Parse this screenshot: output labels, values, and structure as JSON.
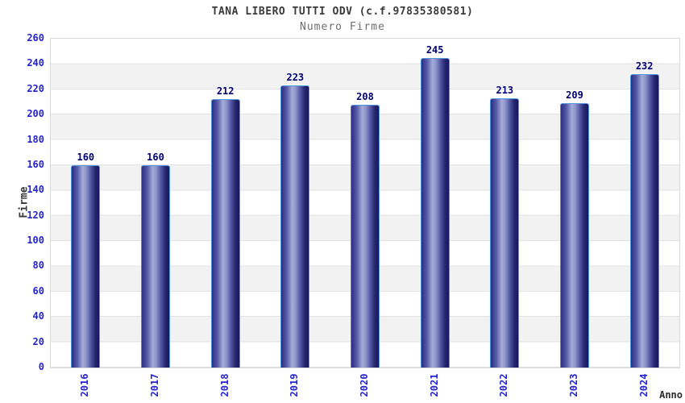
{
  "header": {
    "title": "TANA LIBERO TUTTI ODV (c.f.97835380581)",
    "subtitle": "Numero Firme"
  },
  "chart_data": {
    "type": "bar",
    "title": "TANA LIBERO TUTTI ODV (c.f.97835380581)",
    "subtitle": "Numero Firme",
    "xlabel": "Anno",
    "ylabel": "Firme",
    "categories": [
      "2016",
      "2017",
      "2018",
      "2019",
      "2020",
      "2021",
      "2022",
      "2023",
      "2024"
    ],
    "values": [
      160,
      160,
      212,
      223,
      208,
      245,
      213,
      209,
      232
    ],
    "ylim": [
      0,
      260
    ],
    "ytick_step": 20,
    "ytick_labels": [
      "0",
      "20",
      "40",
      "60",
      "80",
      "100",
      "120",
      "140",
      "160",
      "180",
      "200",
      "220",
      "240",
      "260"
    ],
    "grid": "horizontal-bands",
    "legend": "none",
    "colors": {
      "bar_gradient_dark": "#2d2d82",
      "bar_gradient_light": "#a5acd8",
      "bar_gradient_edge": "#171760",
      "bar_border": "#4f94dc",
      "tick_label": "#2323cf",
      "value_label": "#000070",
      "title": "#3a3a3a",
      "subtitle": "#6e6e6e",
      "band_gray": "#f2f2f2",
      "grid_line": "#e3e3e3",
      "background": "#ffffff"
    }
  }
}
